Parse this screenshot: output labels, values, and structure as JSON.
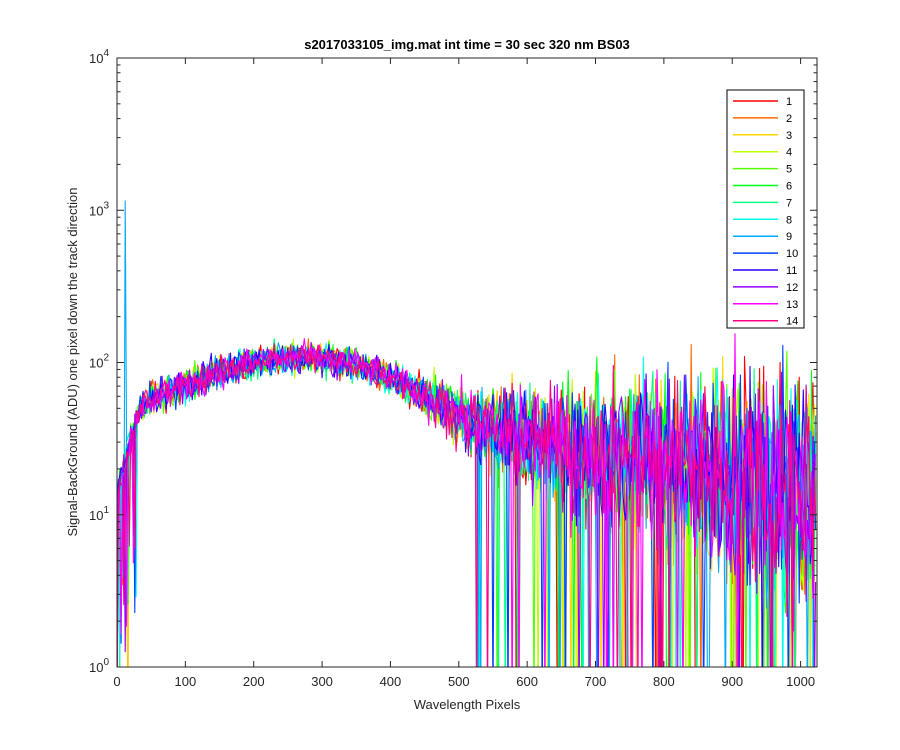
{
  "chart_data": {
    "type": "line",
    "title": "s2017033105_img.mat int time = 30 sec  320 nm BS03",
    "xlabel": "Wavelength Pixels",
    "ylabel": "Signal-BackGround (ADU) one pixel down the track direction",
    "xlim": [
      0,
      1024
    ],
    "ylim": [
      1,
      10000
    ],
    "yscale": "log",
    "x_ticks": [
      "0",
      "100",
      "200",
      "300",
      "400",
      "500",
      "600",
      "700",
      "800",
      "900",
      "1000"
    ],
    "y_ticks": [
      {
        "base": "10",
        "exp": "0"
      },
      {
        "base": "10",
        "exp": "1"
      },
      {
        "base": "10",
        "exp": "2"
      },
      {
        "base": "10",
        "exp": "3"
      },
      {
        "base": "10",
        "exp": "4"
      }
    ],
    "grid": false,
    "legend_position": "top-right",
    "envelope": {
      "x": [
        0,
        15,
        40,
        80,
        130,
        180,
        230,
        270,
        310,
        350,
        400,
        450,
        500,
        560,
        620,
        700,
        800,
        900,
        1023
      ],
      "y": [
        12,
        25,
        55,
        65,
        80,
        95,
        105,
        108,
        104,
        98,
        80,
        60,
        45,
        35,
        30,
        26,
        22,
        19,
        15
      ]
    },
    "annotations_spike": {
      "series": "9",
      "x": 13,
      "y": 1150
    },
    "series": [
      {
        "name": "1",
        "color": "#ff0000"
      },
      {
        "name": "2",
        "color": "#ff6a00"
      },
      {
        "name": "3",
        "color": "#ffd500"
      },
      {
        "name": "4",
        "color": "#bfff00"
      },
      {
        "name": "5",
        "color": "#55ff00"
      },
      {
        "name": "6",
        "color": "#00ff15"
      },
      {
        "name": "7",
        "color": "#00ff80"
      },
      {
        "name": "8",
        "color": "#00ffea"
      },
      {
        "name": "9",
        "color": "#00aaff"
      },
      {
        "name": "10",
        "color": "#0040ff"
      },
      {
        "name": "11",
        "color": "#2a00ff"
      },
      {
        "name": "12",
        "color": "#9500ff"
      },
      {
        "name": "13",
        "color": "#ff00ff"
      },
      {
        "name": "14",
        "color": "#ff0080"
      }
    ]
  }
}
